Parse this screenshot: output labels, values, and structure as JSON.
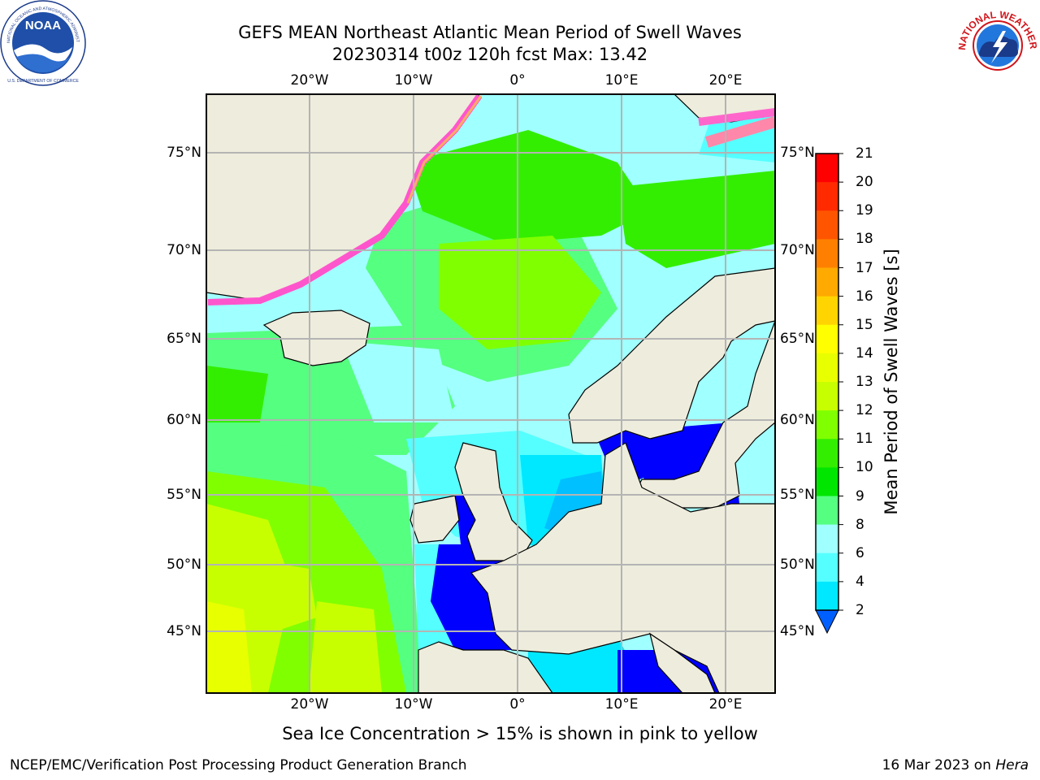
{
  "header": {
    "title_line1": "GEFS MEAN Northeast Atlantic Mean Period of Swell Waves",
    "title_line2": "20230314 t00z 120h fcst   Max: 13.42"
  },
  "map": {
    "lon_labels": [
      "20°W",
      "10°W",
      "0°",
      "10°E",
      "20°E"
    ],
    "lat_labels": [
      "75°N",
      "70°N",
      "65°N",
      "60°N",
      "55°N",
      "50°N",
      "45°N"
    ],
    "colors": {
      "land": "#eeecdc",
      "grid": "#b4b4b4",
      "coast": "#000000"
    }
  },
  "colorbar": {
    "label": "Mean Period of Swell Waves [s]",
    "ticks": [
      "21",
      "20",
      "19",
      "18",
      "17",
      "16",
      "15",
      "14",
      "13",
      "12",
      "11",
      "10",
      "9",
      "8",
      "6",
      "4",
      "2"
    ],
    "colors": [
      "#ff0000",
      "#ff2a00",
      "#ff5500",
      "#ff8000",
      "#ffaa00",
      "#ffd400",
      "#ffff00",
      "#e8ff00",
      "#c8ff00",
      "#80ff00",
      "#33ee00",
      "#00e600",
      "#55ff80",
      "#a0ffff",
      "#55ffff",
      "#00e8ff",
      "#00c0ff",
      "#0060ff"
    ]
  },
  "note": "Sea Ice Concentration > 15% is shown in pink to yellow",
  "footer": {
    "left": "NCEP/EMC/Verification Post Processing Product Generation Branch",
    "right_date": "16 Mar 2023 on ",
    "right_host": "Hera"
  },
  "logos": {
    "noaa_text": "NOAA",
    "nws_text": "NATIONAL WEATHER SERVICE",
    "noaa_arc_text": "NATIONAL OCEANIC AND ATMOSPHERIC ADMINISTRATION",
    "noaa_bottom_text": "U.S. DEPARTMENT OF COMMERCE"
  }
}
